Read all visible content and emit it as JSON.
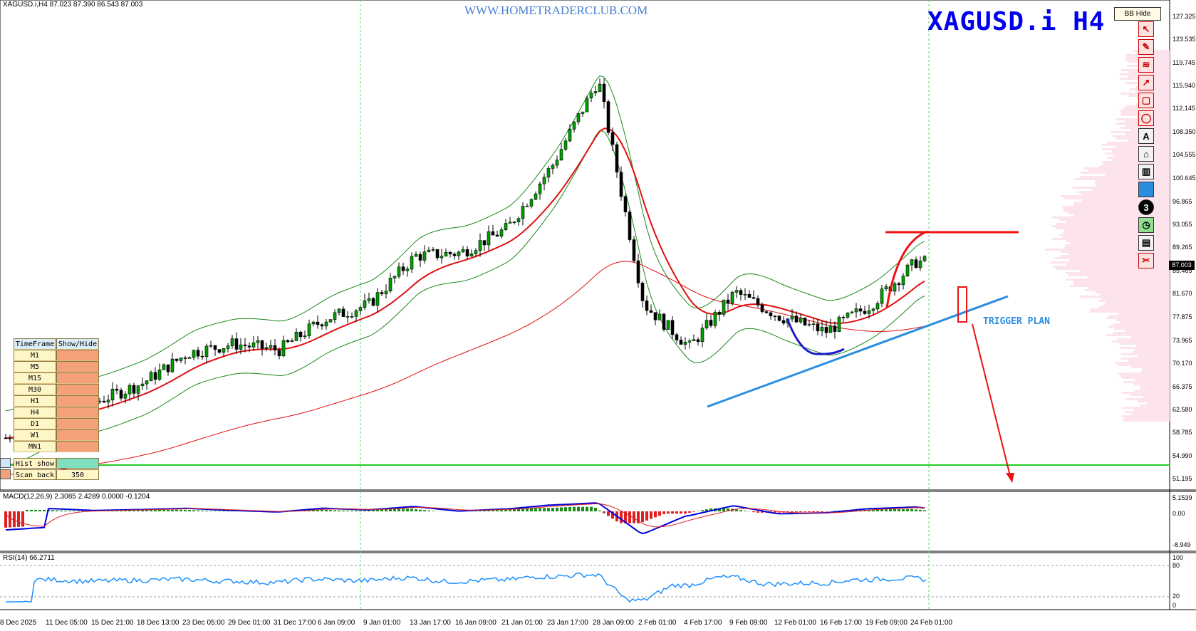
{
  "header": {
    "symbol_line": "XAGUSD.i,H4  87.023 87.390 86.543 87.003",
    "watermark": "WWW.HOMETRADERCLUB.COM",
    "big_title": "XAGUSD.i  H4",
    "bb_hide_button": "BB Hide"
  },
  "annotation": {
    "trigger_label": "TRIGGER PLAN"
  },
  "current_price": "87.003",
  "price_axis": [
    "127.325",
    "123.535",
    "119.745",
    "115.940",
    "112.145",
    "108.350",
    "104.555",
    "100.645",
    "96.865",
    "93.055",
    "89.265",
    "85.465",
    "81.670",
    "77.875",
    "73.965",
    "70.170",
    "66.375",
    "62.580",
    "58.785",
    "54.990",
    "51.195"
  ],
  "date_axis": [
    "8 Dec 2025",
    "11 Dec 05:00",
    "15 Dec 21:00",
    "18 Dec 13:00",
    "23 Dec 05:00",
    "29 Dec 01:00",
    "31 Dec 17:00",
    "6 Jan 09:00",
    "9 Jan 01:00",
    "13 Jan 17:00",
    "16 Jan 09:00",
    "21 Jan 01:00",
    "23 Jan 17:00",
    "28 Jan 09:00",
    "2 Feb 01:00",
    "4 Feb 17:00",
    "9 Feb 09:00",
    "12 Feb 01:00",
    "16 Feb 17:00",
    "19 Feb 09:00",
    "24 Feb 01:00"
  ],
  "macd": {
    "label": "MACD(12,26,9) 2.3085 2.4289 0.0000 -0.1204",
    "axis": [
      "5.1539",
      "0.00",
      "-8.949"
    ]
  },
  "rsi": {
    "label": "RSI(14) 66.2711",
    "axis": [
      "100",
      "80",
      "20",
      "0"
    ]
  },
  "timeframe_panel": {
    "headers": [
      "TimeFrame",
      "Show/Hide"
    ],
    "rows": [
      "M1",
      "M5",
      "M15",
      "M30",
      "H1",
      "H4",
      "D1",
      "W1",
      "MN1"
    ]
  },
  "hist_panel": {
    "hist_label": "Hist show",
    "scan_label": "Scan back",
    "scan_value": "350"
  },
  "toolbar_icons": [
    "cursor-icon",
    "brush-icon",
    "fibonacci-icon",
    "arrow-icon",
    "rectangle-icon",
    "ellipse-icon",
    "text-icon",
    "label-icon",
    "delete-icon",
    "color-icon",
    "width-icon",
    "timer-icon",
    "screenshot-icon",
    "cut-icon"
  ],
  "toolbar_text": {
    "text_tool": "A",
    "width_tool": "3"
  },
  "colors": {
    "bullish_candle": "#00a000",
    "bearish_candle": "#000000",
    "ma_red": "#e01010",
    "bollinger": "#1a8a1a",
    "trendline_blue": "#2a8de0",
    "support_green": "#22cc22",
    "macd_line": "#0000dd",
    "signal_line": "#e02020",
    "rsi_line": "#1e90ff"
  },
  "chart_data": {
    "type": "candlestick",
    "symbol": "XAGUSD.i",
    "timeframe": "H4",
    "ylim": [
      51.195,
      127.325
    ],
    "close_approx": [
      {
        "x": "8 Dec 2025",
        "y": 58.0
      },
      {
        "x": "11 Dec 05:00",
        "y": 62.5
      },
      {
        "x": "15 Dec 21:00",
        "y": 64.0
      },
      {
        "x": "18 Dec 13:00",
        "y": 67.0
      },
      {
        "x": "23 Dec 05:00",
        "y": 72.0
      },
      {
        "x": "29 Dec 01:00",
        "y": 73.5
      },
      {
        "x": "31 Dec 17:00",
        "y": 72.5
      },
      {
        "x": "6 Jan 09:00",
        "y": 77.5
      },
      {
        "x": "9 Jan 01:00",
        "y": 80.0
      },
      {
        "x": "13 Jan 17:00",
        "y": 88.0
      },
      {
        "x": "16 Jan 09:00",
        "y": 88.5
      },
      {
        "x": "21 Jan 01:00",
        "y": 92.5
      },
      {
        "x": "23 Jan 17:00",
        "y": 103.0
      },
      {
        "x": "28 Jan 09:00",
        "y": 117.0
      },
      {
        "x": "2 Feb 01:00",
        "y": 80.0
      },
      {
        "x": "4 Feb 17:00",
        "y": 73.0
      },
      {
        "x": "9 Feb 09:00",
        "y": 82.0
      },
      {
        "x": "12 Feb 01:00",
        "y": 78.0
      },
      {
        "x": "16 Feb 17:00",
        "y": 75.5
      },
      {
        "x": "19 Feb 09:00",
        "y": 80.0
      },
      {
        "x": "24 Feb 01:00",
        "y": 87.0
      }
    ],
    "levels": {
      "resistance": 92.5,
      "support": 54.99
    },
    "rsi_current": 66.2711,
    "macd": {
      "main": 2.3085,
      "signal": 2.4289,
      "hist": -0.1204
    }
  }
}
